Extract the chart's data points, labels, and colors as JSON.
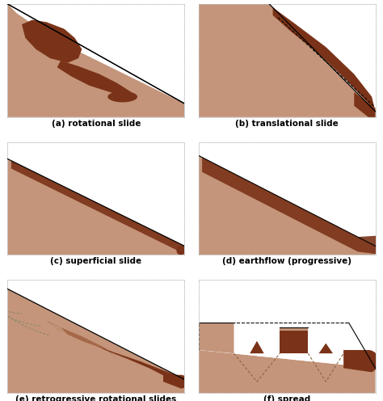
{
  "light_brown": "#c4957a",
  "dark_brown": "#7a3318",
  "mid_brown": "#a06040",
  "bg_color": "#ffffff",
  "border_color": "#bbbbbb",
  "dashed_color": "#886644",
  "text_color": "#000000",
  "labels": [
    "(a) rotational slide",
    "(b) translational slide",
    "(c) superficial slide",
    "(d) earthflow (progressive)",
    "(e) retrogressive rotational slides",
    "(f) spread"
  ],
  "label_fontsize": 7.5,
  "figsize": [
    4.74,
    4.96
  ],
  "dpi": 100
}
